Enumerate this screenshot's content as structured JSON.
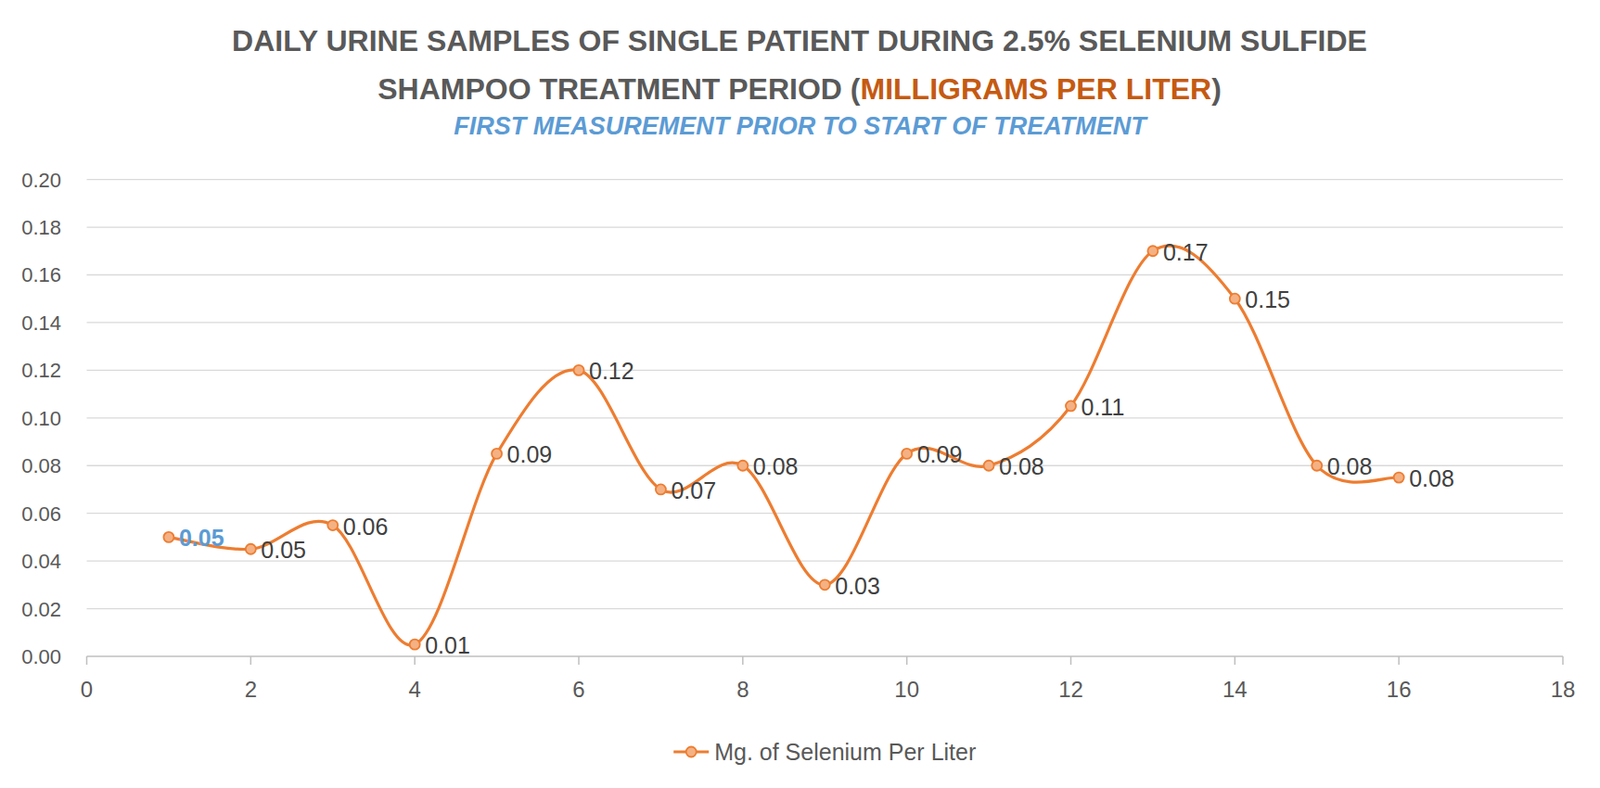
{
  "chart_data": {
    "type": "line",
    "title": "DAILY URINE SAMPLES OF SINGLE PATIENT DURING 2.5% SELENIUM SULFIDE SHAMPOO TREATMENT PERIOD (MILLIGRAMS PER LITER)",
    "title_highlight": "MILLIGRAMS PER LITER",
    "subtitle": "FIRST MEASUREMENT PRIOR TO START OF TREATMENT",
    "x": [
      1,
      2,
      3,
      4,
      5,
      6,
      7,
      8,
      9,
      10,
      11,
      12,
      13,
      14,
      15,
      16
    ],
    "xlim": [
      0,
      18
    ],
    "xticks": [
      0,
      2,
      4,
      6,
      8,
      10,
      12,
      14,
      16,
      18
    ],
    "ylim": [
      0,
      0.2
    ],
    "yticks": [
      {
        "value": 0,
        "label": "0.00"
      },
      {
        "value": 0.02,
        "label": "0.02"
      },
      {
        "value": 0.04,
        "label": "0.04"
      },
      {
        "value": 0.06,
        "label": "0.06"
      },
      {
        "value": 0.08,
        "label": "0.08"
      },
      {
        "value": 0.1,
        "label": "0.10"
      },
      {
        "value": 0.12,
        "label": "0.12"
      },
      {
        "value": 0.14,
        "label": "0.14"
      },
      {
        "value": 0.16,
        "label": "0.16"
      },
      {
        "value": 0.18,
        "label": "0.18"
      },
      {
        "value": 0.2,
        "label": "0.20"
      }
    ],
    "grid": true,
    "legend": "bottom",
    "data_labels": true,
    "series": [
      {
        "name": "Mg. of Selenium Per Liter",
        "color": "#ed7d31",
        "marker": "circle",
        "line_style": "smooth",
        "values": [
          0.05,
          0.045,
          0.055,
          0.005,
          0.085,
          0.12,
          0.07,
          0.08,
          0.03,
          0.085,
          0.08,
          0.105,
          0.17,
          0.15,
          0.08,
          0.075
        ],
        "value_labels": [
          "0.05",
          "0.05",
          "0.06",
          "0.01",
          "0.09",
          "0.12",
          "0.07",
          "0.08",
          "0.03",
          "0.09",
          "0.08",
          "0.11",
          "0.17",
          "0.15",
          "0.08",
          "0.08"
        ]
      }
    ]
  }
}
